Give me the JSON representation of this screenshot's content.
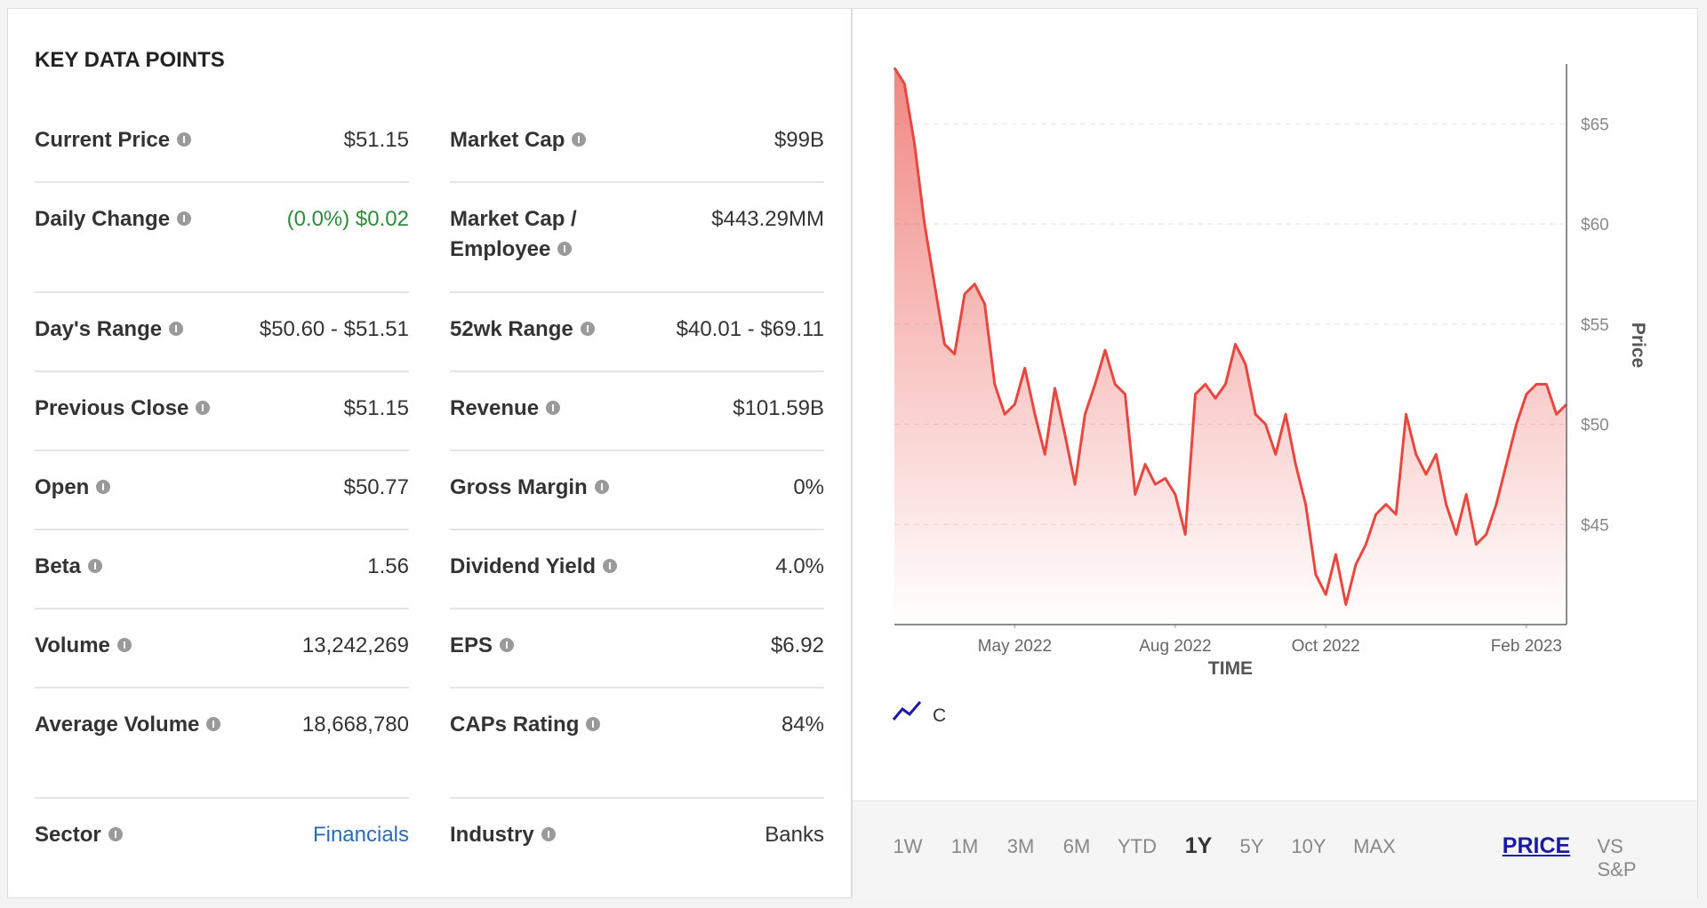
{
  "header": {
    "title": "KEY DATA POINTS"
  },
  "table": {
    "rows": [
      [
        {
          "label": "Current Price",
          "value": "$51.15"
        },
        {
          "label": "Market Cap",
          "value": "$99B"
        }
      ],
      [
        {
          "label": "Daily Change",
          "value": "(0.0%) $0.02"
        },
        {
          "label": "Market Cap / Employee",
          "value": "$443.29MM"
        }
      ],
      [
        {
          "label": "Day's Range",
          "value": "$50.60 - $51.51"
        },
        {
          "label": "52wk Range",
          "value": "$40.01 - $69.11"
        }
      ],
      [
        {
          "label": "Previous Close",
          "value": "$51.15"
        },
        {
          "label": "Revenue",
          "value": "$101.59B"
        }
      ],
      [
        {
          "label": "Open",
          "value": "$50.77"
        },
        {
          "label": "Gross Margin",
          "value": "0%"
        }
      ],
      [
        {
          "label": "Beta",
          "value": "1.56"
        },
        {
          "label": "Dividend Yield",
          "value": "4.0%"
        }
      ],
      [
        {
          "label": "Volume",
          "value": "13,242,269"
        },
        {
          "label": "EPS",
          "value": "$6.92"
        }
      ],
      [
        {
          "label": "Average Volume",
          "value": "18,668,780"
        },
        {
          "label": "CAPs Rating",
          "value": "84%"
        }
      ],
      [
        {
          "label": "Sector",
          "value": "Financials"
        },
        {
          "label": "Industry",
          "value": "Banks"
        }
      ]
    ]
  },
  "chart_data": {
    "type": "line",
    "x_label": "TIME",
    "y_label": "Price",
    "series": [
      {
        "name": "C",
        "color": "#e8473f",
        "values": [
          67.8,
          67,
          64,
          60,
          57,
          54,
          53.5,
          56.5,
          57,
          56,
          52,
          50.5,
          51,
          52.8,
          50.5,
          48.5,
          51.8,
          49.5,
          47,
          50.5,
          52,
          53.7,
          52,
          51.5,
          46.5,
          48,
          47,
          47.3,
          46.5,
          44.5,
          51.5,
          52,
          51.3,
          52,
          54,
          53,
          50.5,
          50,
          48.5,
          50.5,
          48,
          46,
          42.5,
          41.5,
          43.5,
          41,
          43,
          44,
          45.5,
          46,
          45.5,
          50.5,
          48.5,
          47.5,
          48.5,
          46,
          44.5,
          46.5,
          44,
          44.5,
          46,
          48,
          50,
          51.5,
          52,
          52,
          50.5,
          51
        ]
      }
    ],
    "xlim": [
      0,
      67
    ],
    "xticks": [
      {
        "value": 12,
        "label": "May 2022"
      },
      {
        "value": 28,
        "label": "Aug 2022"
      },
      {
        "value": 43,
        "label": "Oct 2022"
      },
      {
        "value": 63,
        "label": "Feb 2023"
      }
    ],
    "ylim": [
      40,
      67.9
    ],
    "yticks": [
      {
        "value": 45,
        "label": "$45"
      },
      {
        "value": 50,
        "label": "$50"
      },
      {
        "value": 55,
        "label": "$55"
      },
      {
        "value": 60,
        "label": "$60"
      },
      {
        "value": 65,
        "label": "$65"
      }
    ],
    "grid": true
  },
  "controls": {
    "ranges": [
      "1W",
      "1M",
      "3M",
      "6M",
      "YTD",
      "1Y",
      "5Y",
      "10Y",
      "MAX"
    ],
    "modes": [
      "PRICE",
      "VS S&P"
    ]
  }
}
